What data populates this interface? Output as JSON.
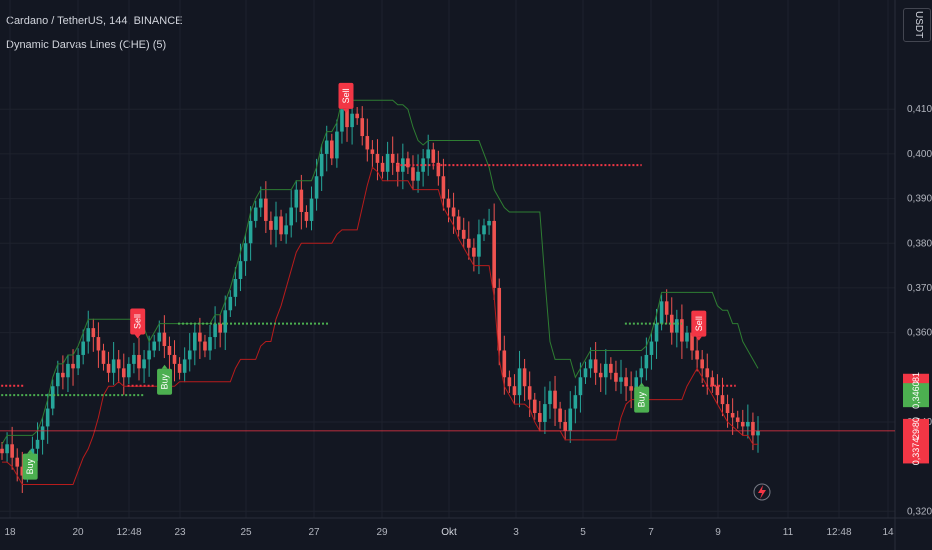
{
  "header": {
    "symbol_title": "Cardano / TetherUS, 144, BINANCE",
    "indicator_title": "Dynamic Darvas Lines (CHE) (5)",
    "currency_button": "USDT"
  },
  "colors": {
    "background": "#131722",
    "up": "#26a69a",
    "down": "#ef5350",
    "buy": "#4caf50",
    "sell": "#f23645",
    "grid": "#1e222d",
    "text": "#b2b5be",
    "upper_line": "#2e7d32",
    "lower_line": "#b71c1c"
  },
  "chart_data": {
    "type": "candlestick",
    "y_axis": {
      "ticks": [
        "0,4100",
        "0,4000",
        "0,3900",
        "0,3800",
        "0,3700",
        "0,3600",
        "0,3400",
        "0,3200"
      ],
      "tick_values": [
        0.41,
        0.4,
        0.39,
        0.38,
        0.37,
        0.36,
        0.34,
        0.32
      ],
      "range": [
        0.3185,
        0.4255
      ]
    },
    "x_axis": {
      "ticks": [
        "18",
        "20",
        "12:48",
        "23",
        "25",
        "27",
        "29",
        "Okt",
        "3",
        "5",
        "7",
        "9",
        "11",
        "12:48",
        "14"
      ]
    },
    "price_labels": [
      {
        "text": "0,3481",
        "value": 0.3481,
        "color": "#f23645"
      },
      {
        "text": "0,3460",
        "value": 0.346,
        "color": "#4caf50"
      },
      {
        "text": "0,3380",
        "value": 0.338,
        "color": "#f23645"
      },
      {
        "text": "57:29",
        "value": 0.3359,
        "color": "#f23645"
      },
      {
        "text": "0,3374",
        "value": 0.3334,
        "color": "#f23645"
      }
    ],
    "signals": [
      {
        "type": "Buy",
        "day": 18.6,
        "price": 0.33
      },
      {
        "type": "Sell",
        "day": 21.8,
        "price": 0.3625
      },
      {
        "type": "Buy",
        "day": 22.6,
        "price": 0.349
      },
      {
        "type": "Sell",
        "day": 28.0,
        "price": 0.413
      },
      {
        "type": "Buy",
        "day": 6.8,
        "price": 0.345
      },
      {
        "type": "Sell",
        "day": 8.5,
        "price": 0.362
      }
    ],
    "dotted_levels": [
      {
        "price": 0.346,
        "from_day": 17.5,
        "to_day": 22.0,
        "color": "#4caf50"
      },
      {
        "price": 0.362,
        "from_day": 23.0,
        "to_day": 27.5,
        "color": "#4caf50"
      },
      {
        "price": 0.3975,
        "from_day": 29.5,
        "to_day": 6.8,
        "color": "#f23645"
      },
      {
        "price": 0.3481,
        "from_day": 17.5,
        "to_day": 18.4,
        "color": "#f23645"
      },
      {
        "price": 0.3481,
        "from_day": 21.5,
        "to_day": 22.3,
        "color": "#f23645"
      },
      {
        "price": 0.3481,
        "from_day": 8.6,
        "to_day": 9.6,
        "color": "#f23645"
      },
      {
        "price": 0.362,
        "from_day": 6.3,
        "to_day": 8.0,
        "color": "#4caf50"
      }
    ],
    "current_price": 0.338,
    "candles_note": "OHLC series estimated from chart",
    "closes": [
      0.333,
      0.335,
      0.332,
      0.33,
      0.328,
      0.331,
      0.334,
      0.336,
      0.339,
      0.343,
      0.348,
      0.351,
      0.35,
      0.353,
      0.352,
      0.355,
      0.358,
      0.361,
      0.359,
      0.356,
      0.353,
      0.351,
      0.354,
      0.352,
      0.35,
      0.353,
      0.355,
      0.352,
      0.354,
      0.356,
      0.358,
      0.36,
      0.357,
      0.355,
      0.353,
      0.351,
      0.354,
      0.356,
      0.36,
      0.358,
      0.356,
      0.359,
      0.362,
      0.36,
      0.365,
      0.368,
      0.372,
      0.376,
      0.38,
      0.385,
      0.388,
      0.39,
      0.385,
      0.383,
      0.386,
      0.382,
      0.384,
      0.388,
      0.392,
      0.387,
      0.385,
      0.39,
      0.395,
      0.4,
      0.403,
      0.399,
      0.405,
      0.41,
      0.406,
      0.409,
      0.408,
      0.404,
      0.401,
      0.4,
      0.398,
      0.396,
      0.4,
      0.398,
      0.396,
      0.399,
      0.397,
      0.394,
      0.396,
      0.399,
      0.401,
      0.398,
      0.395,
      0.39,
      0.388,
      0.386,
      0.383,
      0.381,
      0.379,
      0.377,
      0.382,
      0.384,
      0.385,
      0.37,
      0.356,
      0.35,
      0.348,
      0.346,
      0.352,
      0.348,
      0.345,
      0.342,
      0.34,
      0.344,
      0.347,
      0.343,
      0.34,
      0.338,
      0.343,
      0.346,
      0.35,
      0.352,
      0.354,
      0.351,
      0.35,
      0.353,
      0.351,
      0.349,
      0.35,
      0.348,
      0.347,
      0.35,
      0.352,
      0.355,
      0.358,
      0.362,
      0.367,
      0.364,
      0.36,
      0.363,
      0.358,
      0.36,
      0.356,
      0.354,
      0.352,
      0.35,
      0.348,
      0.346,
      0.344,
      0.342,
      0.341,
      0.34,
      0.339,
      0.34,
      0.337,
      0.338
    ]
  }
}
